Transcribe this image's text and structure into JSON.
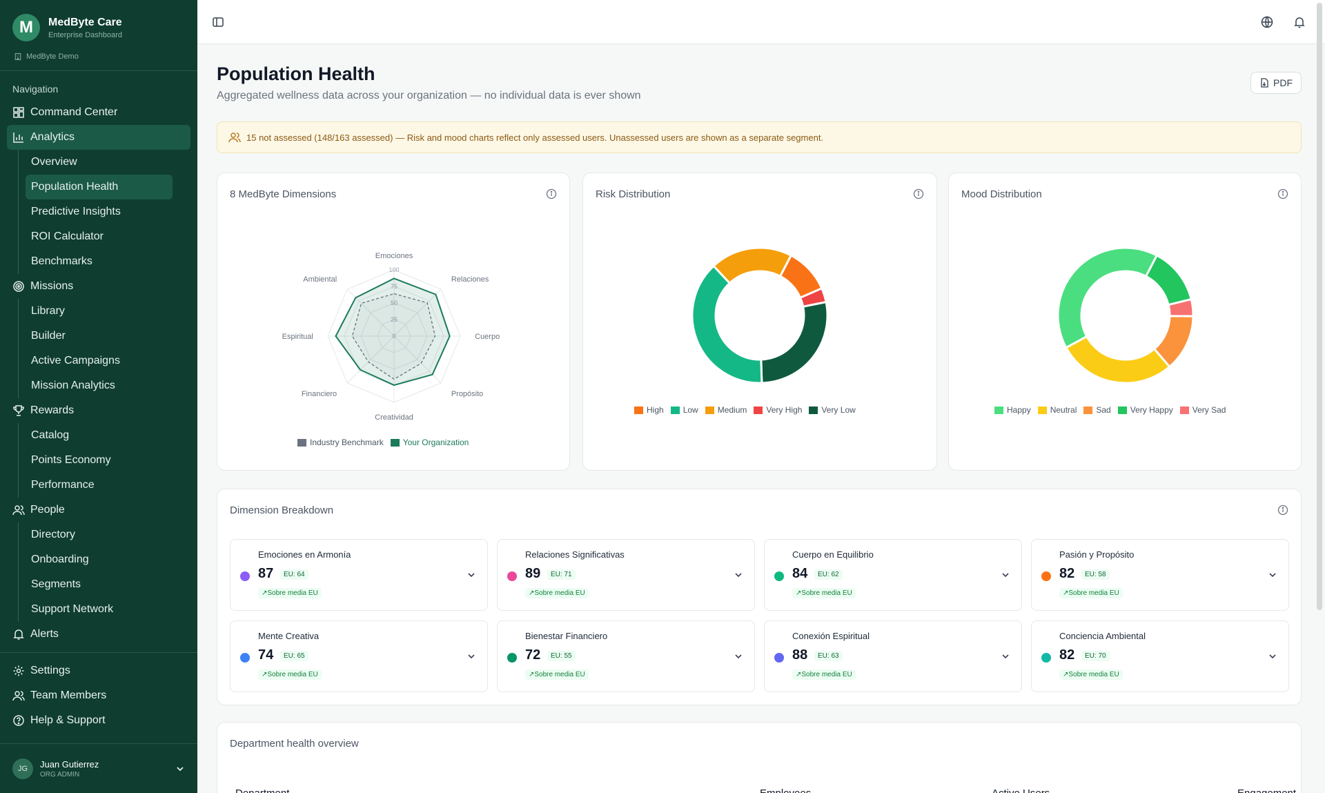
{
  "brand": {
    "logo_letter": "M",
    "name": "MedByte Care",
    "subtitle": "Enterprise Dashboard",
    "org": "MedByte Demo"
  },
  "nav": {
    "section_label": "Navigation",
    "command_center": "Command Center",
    "analytics": "Analytics",
    "analytics_items": [
      "Overview",
      "Population Health",
      "Predictive Insights",
      "ROI Calculator",
      "Benchmarks"
    ],
    "missions": "Missions",
    "missions_items": [
      "Library",
      "Builder",
      "Active Campaigns",
      "Mission Analytics"
    ],
    "rewards": "Rewards",
    "rewards_items": [
      "Catalog",
      "Points Economy",
      "Performance"
    ],
    "people": "People",
    "people_items": [
      "Directory",
      "Onboarding",
      "Segments",
      "Support Network"
    ],
    "alerts": "Alerts",
    "settings": "Settings",
    "team_members": "Team Members",
    "help": "Help & Support"
  },
  "user": {
    "initials": "JG",
    "name": "Juan Gutierrez",
    "role": "ORG ADMIN"
  },
  "page": {
    "title": "Population Health",
    "subtitle": "Aggregated wellness data across your organization — no individual data is ever shown",
    "pdf_label": "PDF",
    "notice": "15 not assessed (148/163 assessed) — Risk and mood charts reflect only assessed users. Unassessed users are shown as a separate segment."
  },
  "radar": {
    "title": "8 MedByte Dimensions",
    "axes": [
      "Emociones",
      "Relaciones",
      "Cuerpo",
      "Propósito",
      "Creatividad",
      "Financiero",
      "Espiritual",
      "Ambiental"
    ],
    "ticks": [
      "0",
      "25",
      "50",
      "75",
      "100"
    ],
    "org_values": [
      87,
      89,
      84,
      82,
      74,
      72,
      88,
      82
    ],
    "benchmark_values": [
      64,
      71,
      62,
      58,
      65,
      55,
      63,
      70
    ],
    "legend": [
      "Industry Benchmark",
      "Your Organization"
    ],
    "org_color": "#1b7a5a",
    "bench_color": "#6b7280"
  },
  "risk": {
    "title": "Risk Distribution",
    "segments": [
      {
        "label": "High",
        "value": 16,
        "color": "#f97316"
      },
      {
        "label": "Very High",
        "value": 5,
        "color": "#ef4444"
      },
      {
        "label": "Very Low",
        "value": 41,
        "color": "#0f5a3f"
      },
      {
        "label": "Low",
        "value": 57,
        "color": "#14b886"
      },
      {
        "label": "Medium",
        "value": 29,
        "color": "#f59e0b"
      }
    ],
    "legend": [
      {
        "label": "High",
        "color": "#f97316"
      },
      {
        "label": "Low",
        "color": "#14b886"
      },
      {
        "label": "Medium",
        "color": "#f59e0b"
      },
      {
        "label": "Very High",
        "color": "#ef4444"
      },
      {
        "label": "Very Low",
        "color": "#0f5a3f"
      }
    ]
  },
  "mood": {
    "title": "Mood Distribution",
    "segments": [
      {
        "label": "Very Happy",
        "value": 20,
        "color": "#22c55e"
      },
      {
        "label": "Very Sad",
        "value": 6,
        "color": "#f87171"
      },
      {
        "label": "Sad",
        "value": 20,
        "color": "#fb923c"
      },
      {
        "label": "Neutral",
        "value": 42,
        "color": "#facc15"
      },
      {
        "label": "Happy",
        "value": 60,
        "color": "#4ade80"
      }
    ],
    "legend": [
      {
        "label": "Happy",
        "color": "#4ade80"
      },
      {
        "label": "Neutral",
        "color": "#facc15"
      },
      {
        "label": "Sad",
        "color": "#fb923c"
      },
      {
        "label": "Very Happy",
        "color": "#22c55e"
      },
      {
        "label": "Very Sad",
        "color": "#f87171"
      }
    ]
  },
  "breakdown": {
    "title": "Dimension Breakdown",
    "items": [
      {
        "name": "Emociones en Armonía",
        "score": "87",
        "eu": "EU: 64",
        "trend": "Sobre media EU",
        "color": "#8b5cf6"
      },
      {
        "name": "Relaciones Significativas",
        "score": "89",
        "eu": "EU: 71",
        "trend": "Sobre media EU",
        "color": "#ec4899"
      },
      {
        "name": "Cuerpo en Equilibrio",
        "score": "84",
        "eu": "EU: 62",
        "trend": "Sobre media EU",
        "color": "#10b981"
      },
      {
        "name": "Pasión y Propósito",
        "score": "82",
        "eu": "EU: 58",
        "trend": "Sobre media EU",
        "color": "#f97316"
      },
      {
        "name": "Mente Creativa",
        "score": "74",
        "eu": "EU: 65",
        "trend": "Sobre media EU",
        "color": "#3b82f6"
      },
      {
        "name": "Bienestar Financiero",
        "score": "72",
        "eu": "EU: 55",
        "trend": "Sobre media EU",
        "color": "#059669"
      },
      {
        "name": "Conexión Espiritual",
        "score": "88",
        "eu": "EU: 63",
        "trend": "Sobre media EU",
        "color": "#6366f1"
      },
      {
        "name": "Conciencia Ambiental",
        "score": "82",
        "eu": "EU: 70",
        "trend": "Sobre media EU",
        "color": "#14b8a6"
      }
    ]
  },
  "department": {
    "title": "Department health overview",
    "columns": [
      "Department",
      "Employees",
      "Active Users",
      "Engagement"
    ]
  },
  "chart_data": [
    {
      "type": "radar",
      "title": "8 MedByte Dimensions",
      "categories": [
        "Emociones",
        "Relaciones",
        "Cuerpo",
        "Propósito",
        "Creatividad",
        "Financiero",
        "Espiritual",
        "Ambiental"
      ],
      "series": [
        {
          "name": "Your Organization",
          "values": [
            87,
            89,
            84,
            82,
            74,
            72,
            88,
            82
          ]
        },
        {
          "name": "Industry Benchmark",
          "values": [
            64,
            71,
            62,
            58,
            65,
            55,
            63,
            70
          ]
        }
      ],
      "ylim": [
        0,
        100
      ]
    },
    {
      "type": "pie",
      "title": "Risk Distribution",
      "categories": [
        "High",
        "Very High",
        "Very Low",
        "Low",
        "Medium"
      ],
      "values": [
        16,
        5,
        41,
        57,
        29
      ]
    },
    {
      "type": "pie",
      "title": "Mood Distribution",
      "categories": [
        "Very Happy",
        "Very Sad",
        "Sad",
        "Neutral",
        "Happy"
      ],
      "values": [
        20,
        6,
        20,
        42,
        60
      ]
    }
  ]
}
